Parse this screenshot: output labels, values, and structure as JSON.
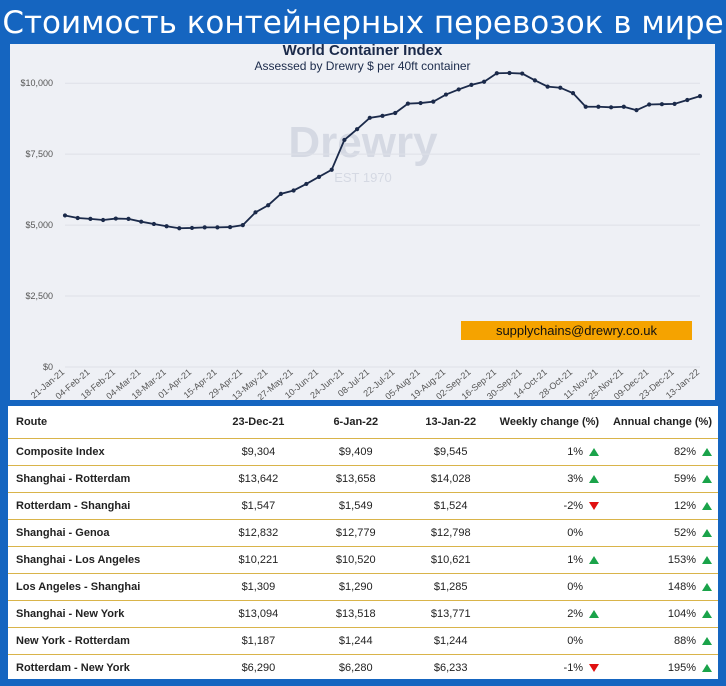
{
  "banner": "Стоимость контейнерных перевозок в мире",
  "chart_data": {
    "type": "line",
    "title": "World Container Index",
    "subtitle": "Assessed by Drewry  $ per 40ft container",
    "watermark": "Drewry",
    "watermark_sub": "EST 1970",
    "email": "supplychains@drewry.co.uk",
    "ylim": [
      0,
      10500
    ],
    "yticks": [
      {
        "value": 0,
        "label": "$0"
      },
      {
        "value": 2500,
        "label": "$2,500"
      },
      {
        "value": 5000,
        "label": "$5,000"
      },
      {
        "value": 7500,
        "label": "$7,500"
      },
      {
        "value": 10000,
        "label": "$10,000"
      }
    ],
    "xticks": [
      "21-Jan-21",
      "04-Feb-21",
      "18-Feb-21",
      "04-Mar-21",
      "18-Mar-21",
      "01-Apr-21",
      "15-Apr-21",
      "29-Apr-21",
      "13-May-21",
      "27-May-21",
      "10-Jun-21",
      "24-Jun-21",
      "08-Jul-21",
      "22-Jul-21",
      "05-Aug-21",
      "19-Aug-21",
      "02-Sep-21",
      "16-Sep-21",
      "30-Sep-21",
      "14-Oct-21",
      "28-Oct-21",
      "11-Nov-21",
      "25-Nov-21",
      "09-Dec-21",
      "23-Dec-21",
      "13-Jan-22"
    ],
    "grid": true,
    "series": [
      {
        "color": "#1b2a4a",
        "values": [
          5340,
          5250,
          5220,
          5180,
          5230,
          5220,
          5120,
          5040,
          4960,
          4890,
          4900,
          4920,
          4920,
          4930,
          5000,
          5450,
          5700,
          6100,
          6220,
          6450,
          6700,
          6950,
          8000,
          8380,
          8780,
          8850,
          8950,
          9280,
          9300,
          9350,
          9600,
          9780,
          9940,
          10050,
          10350,
          10360,
          10340,
          10100,
          9880,
          9840,
          9650,
          9170,
          9170,
          9150,
          9170,
          9050,
          9250,
          9260,
          9270,
          9409,
          9545
        ]
      }
    ]
  },
  "table": {
    "headers": {
      "route": "Route",
      "c1": "23-Dec-21",
      "c2": "6-Jan-22",
      "c3": "13-Jan-22",
      "weekly": "Weekly change (%)",
      "annual": "Annual change (%)"
    },
    "rows": [
      {
        "route": "Composite Index",
        "c1": "$9,304",
        "c2": "$9,409",
        "c3": "$9,545",
        "weekly": "1%",
        "weekly_dir": "up",
        "annual": "82%",
        "annual_dir": "up"
      },
      {
        "route": "Shanghai - Rotterdam",
        "c1": "$13,642",
        "c2": "$13,658",
        "c3": "$14,028",
        "weekly": "3%",
        "weekly_dir": "up",
        "annual": "59%",
        "annual_dir": "up"
      },
      {
        "route": "Rotterdam - Shanghai",
        "c1": "$1,547",
        "c2": "$1,549",
        "c3": "$1,524",
        "weekly": "-2%",
        "weekly_dir": "down",
        "annual": "12%",
        "annual_dir": "up"
      },
      {
        "route": "Shanghai - Genoa",
        "c1": "$12,832",
        "c2": "$12,779",
        "c3": "$12,798",
        "weekly": "0%",
        "weekly_dir": "none",
        "annual": "52%",
        "annual_dir": "up"
      },
      {
        "route": "Shanghai - Los Angeles",
        "c1": "$10,221",
        "c2": "$10,520",
        "c3": "$10,621",
        "weekly": "1%",
        "weekly_dir": "up",
        "annual": "153%",
        "annual_dir": "up"
      },
      {
        "route": "Los Angeles - Shanghai",
        "c1": "$1,309",
        "c2": "$1,290",
        "c3": "$1,285",
        "weekly": "0%",
        "weekly_dir": "none",
        "annual": "148%",
        "annual_dir": "up"
      },
      {
        "route": "Shanghai - New York",
        "c1": "$13,094",
        "c2": "$13,518",
        "c3": "$13,771",
        "weekly": "2%",
        "weekly_dir": "up",
        "annual": "104%",
        "annual_dir": "up"
      },
      {
        "route": "New York - Rotterdam",
        "c1": "$1,187",
        "c2": "$1,244",
        "c3": "$1,244",
        "weekly": "0%",
        "weekly_dir": "none",
        "annual": "88%",
        "annual_dir": "up"
      },
      {
        "route": "Rotterdam - New York",
        "c1": "$6,290",
        "c2": "$6,280",
        "c3": "$6,233",
        "weekly": "-1%",
        "weekly_dir": "down",
        "annual": "195%",
        "annual_dir": "up"
      }
    ]
  }
}
